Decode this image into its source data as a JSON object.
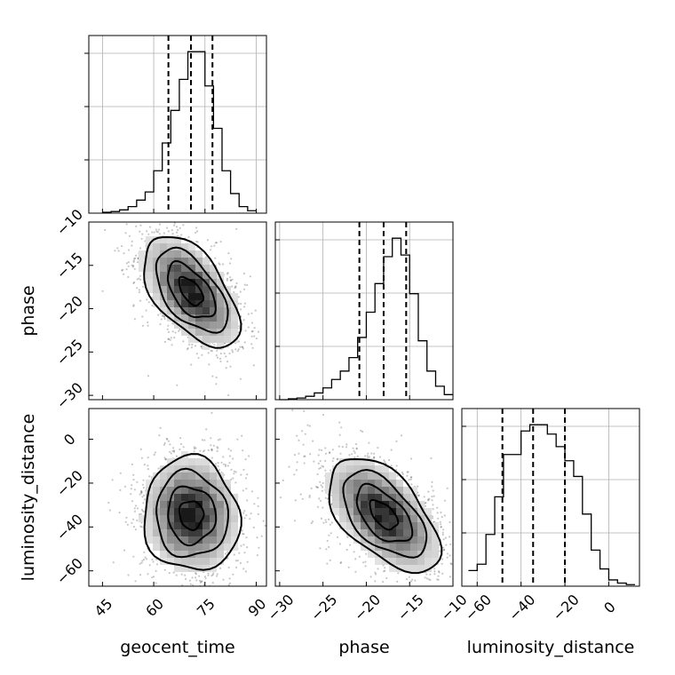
{
  "chart_data": {
    "type": "corner",
    "title": "",
    "parameters": [
      "geocent_time",
      "phase",
      "luminosity_distance"
    ],
    "axis_ranges": {
      "geocent_time": [
        41,
        93
      ],
      "phase": [
        -30.5,
        -10
      ],
      "luminosity_distance": [
        -67,
        14
      ]
    },
    "ticks": {
      "geocent_time": {
        "values": [
          45,
          60,
          75,
          90
        ],
        "labels": [
          "45",
          "60",
          "75",
          "90"
        ]
      },
      "phase": {
        "values": [
          -30,
          -25,
          -20,
          -15,
          -10
        ],
        "labels": [
          "−30",
          "−25",
          "−20",
          "−15",
          "−10"
        ]
      },
      "luminosity_distance": {
        "values": [
          -60,
          -40,
          -20,
          0
        ],
        "labels": [
          "−60",
          "−40",
          "−20",
          "0"
        ]
      }
    },
    "quantiles": {
      "geocent_time": [
        64.3,
        70.9,
        77.2
      ],
      "phase": [
        -20.8,
        -18.0,
        -15.4
      ],
      "luminosity_distance": [
        -48.5,
        -34.5,
        -20.0
      ]
    },
    "histograms": {
      "geocent_time": {
        "edges": [
          45,
          47.5,
          50,
          52.5,
          55,
          57.5,
          60,
          62.5,
          65,
          67.5,
          70,
          72.5,
          75,
          77.5,
          80,
          82.5,
          85,
          87.5,
          90
        ],
        "counts": [
          0.5,
          1,
          2,
          4,
          8,
          13,
          26,
          43,
          63,
          82,
          99,
          99,
          78,
          52,
          26,
          12,
          4,
          1.5
        ]
      },
      "phase": {
        "edges": [
          -30,
          -29,
          -28,
          -27,
          -26,
          -25,
          -24,
          -23,
          -22,
          -21,
          -20,
          -19,
          -18,
          -17,
          -16,
          -15,
          -14,
          -13,
          -12,
          -11,
          -10
        ],
        "counts": [
          0,
          0.5,
          1,
          2,
          4,
          7,
          12,
          17,
          25,
          37,
          52,
          69,
          85,
          96,
          86,
          63,
          35,
          17,
          8,
          3
        ]
      },
      "luminosity_distance": {
        "edges": [
          -64,
          -60,
          -56,
          -52,
          -48,
          -44,
          -40,
          -36,
          -32,
          -28,
          -24,
          -20,
          -16,
          -12,
          -8,
          -4,
          0,
          4,
          8,
          12
        ],
        "counts": [
          10,
          14,
          33,
          57,
          84,
          84,
          99,
          103,
          103,
          97,
          89,
          80,
          70,
          46,
          23,
          11,
          4,
          2,
          1
        ]
      }
    },
    "pairs": [
      {
        "x": "geocent_time",
        "y": "phase",
        "center": [
          70.9,
          -18.0
        ],
        "sigma": [
          7,
          3.2
        ],
        "correlation": -0.55
      },
      {
        "x": "geocent_time",
        "y": "luminosity_distance",
        "center": [
          71.0,
          -34.5
        ],
        "sigma": [
          7,
          13
        ],
        "correlation": -0.05
      },
      {
        "x": "phase",
        "y": "luminosity_distance",
        "center": [
          -18.0,
          -34.5
        ],
        "sigma": [
          3.2,
          13
        ],
        "correlation": -0.55
      }
    ],
    "grid": true,
    "legend": "none"
  }
}
